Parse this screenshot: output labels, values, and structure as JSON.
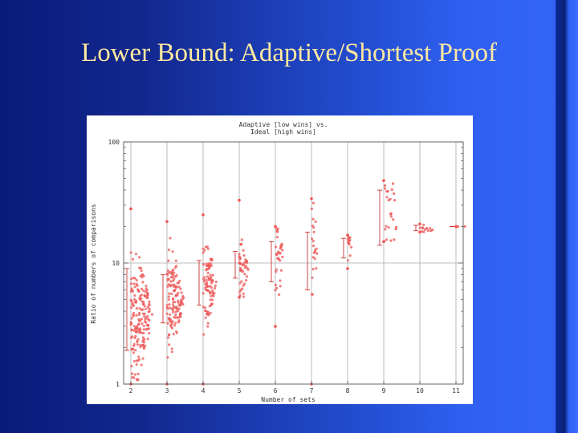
{
  "slide": {
    "title": "Lower Bound: Adaptive/Shortest Proof",
    "background_colors": [
      "#0a1a7a",
      "#3466f8"
    ],
    "title_color": "#ffe9a0"
  },
  "chart_data": {
    "type": "scatter",
    "title_lines": [
      "Adaptive [low wins] vs.",
      "Ideal [high wins]"
    ],
    "xlabel": "Number of sets",
    "ylabel": "Ratio of numbers of comparisons",
    "x_ticks": [
      "2",
      "3",
      "4",
      "5",
      "6",
      "7",
      "8",
      "9",
      "10",
      "11"
    ],
    "y_ticks": [
      "1",
      "10",
      "100"
    ],
    "y_scale": "log",
    "xlim": [
      1.8,
      11.2
    ],
    "ylim": [
      1,
      100
    ],
    "grid": true,
    "reference_line": 10,
    "point_color": "#ee5555",
    "columns": [
      {
        "x": 2,
        "median": 3.6,
        "spread": 0.45,
        "density": 180,
        "min": 1.0,
        "max": 28,
        "error_bar": [
          1.9,
          9.0
        ]
      },
      {
        "x": 3,
        "median": 5.0,
        "spread": 0.38,
        "density": 130,
        "min": 1.0,
        "max": 22,
        "error_bar": [
          3.2,
          8.0
        ]
      },
      {
        "x": 4,
        "median": 6.8,
        "spread": 0.33,
        "density": 90,
        "min": 1.0,
        "max": 25,
        "error_bar": [
          4.5,
          10.5
        ]
      },
      {
        "x": 5,
        "median": 8.8,
        "spread": 0.25,
        "density": 45,
        "min": 5.2,
        "max": 33,
        "error_bar": [
          7.5,
          12.5
        ]
      },
      {
        "x": 6,
        "median": 11.0,
        "spread": 0.35,
        "density": 34,
        "min": 3.0,
        "max": 20,
        "error_bar": [
          7.0,
          15.0
        ]
      },
      {
        "x": 7,
        "median": 11.0,
        "spread": 0.42,
        "density": 22,
        "min": 1.0,
        "max": 34,
        "error_bar": [
          6.0,
          18.0
        ]
      },
      {
        "x": 8,
        "median": 13.0,
        "spread": 0.2,
        "density": 12,
        "min": 9.0,
        "max": 17,
        "error_bar": [
          11.0,
          16.0
        ]
      },
      {
        "x": 9,
        "median": 20.0,
        "spread": 0.4,
        "density": 8,
        "min": 15.0,
        "max": 48,
        "error_bar": [
          14.0,
          40.0
        ]
      },
      {
        "x": 10,
        "median": 19.5,
        "spread": 0.05,
        "density": 4,
        "min": 18.0,
        "max": 21,
        "error_bar": [
          18.5,
          20.5
        ]
      },
      {
        "x": 11,
        "median": 20.0,
        "spread": 0.0,
        "density": 1,
        "min": 20.0,
        "max": 20,
        "error_bar": [
          20.0,
          20.0
        ]
      }
    ]
  }
}
